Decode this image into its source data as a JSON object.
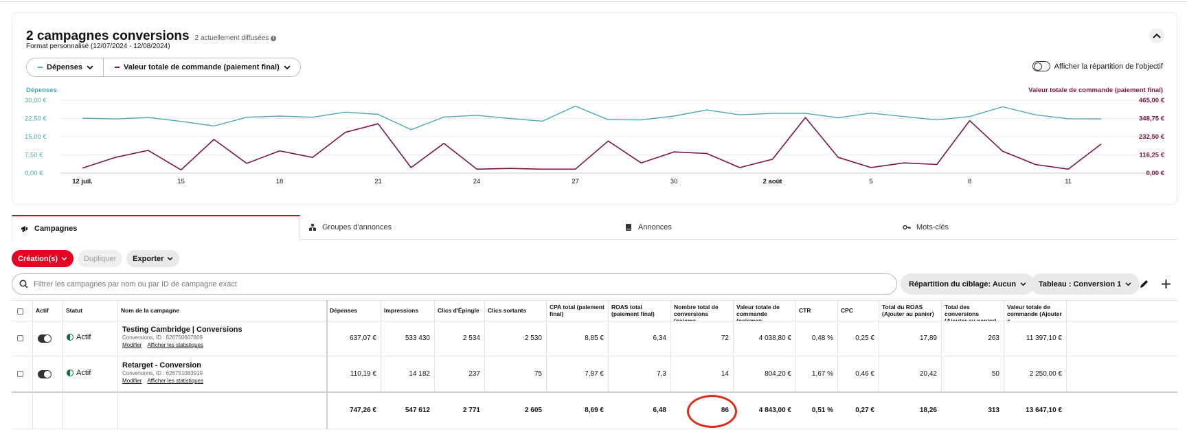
{
  "header": {
    "title": "2 campagnes conversions",
    "subtitle": "2 actuellement diffusées",
    "date_range": "Format personnalisé (12/07/2024 - 12/08/2024)",
    "metric_1": "Dépenses",
    "metric_2": "Valeur totale de commande (paiement final)",
    "toggle_label": "Afficher la répartition de l'objectif"
  },
  "colors": {
    "spend": "#4ea8b4",
    "order_value": "#7a1440",
    "accent": "#e60023"
  },
  "chart_data": {
    "type": "line",
    "left_axis_title": "Dépenses",
    "right_axis_title": "Valeur totale de commande (paiement final)",
    "left_ticks": [
      "30,00 €",
      "22,50 €",
      "15,00 €",
      "7,50 €",
      "0,00 €"
    ],
    "right_ticks": [
      "465,00 €",
      "348,75 €",
      "232,50 €",
      "116,25 €",
      "0,00 €"
    ],
    "left_ylim": [
      0,
      30
    ],
    "right_ylim": [
      0,
      465
    ],
    "x_tick_labels": [
      {
        "day": 0,
        "label": "12 juil.",
        "bold": true
      },
      {
        "day": 3,
        "label": "15",
        "bold": false
      },
      {
        "day": 6,
        "label": "18",
        "bold": false
      },
      {
        "day": 9,
        "label": "21",
        "bold": false
      },
      {
        "day": 12,
        "label": "24",
        "bold": false
      },
      {
        "day": 15,
        "label": "27",
        "bold": false
      },
      {
        "day": 18,
        "label": "30",
        "bold": false
      },
      {
        "day": 21,
        "label": "2 août",
        "bold": true
      },
      {
        "day": 24,
        "label": "5",
        "bold": false
      },
      {
        "day": 27,
        "label": "8",
        "bold": false
      },
      {
        "day": 30,
        "label": "11",
        "bold": false
      }
    ],
    "series": [
      {
        "name": "Dépenses",
        "axis": "left",
        "values": [
          22.6,
          22.3,
          22.9,
          21.3,
          19.4,
          23.0,
          23.5,
          23.0,
          25.1,
          24.2,
          17.9,
          23.1,
          23.8,
          22.5,
          21.4,
          27.6,
          22.0,
          21.9,
          23.5,
          26.0,
          24.0,
          24.6,
          24.6,
          22.8,
          24.7,
          23.3,
          21.9,
          23.3,
          27.3,
          24.0,
          22.4,
          22.3
        ]
      },
      {
        "name": "Valeur totale de commande (paiement final)",
        "axis": "right",
        "values": [
          32,
          100,
          145,
          20,
          215,
          62,
          142,
          100,
          260,
          315,
          35,
          190,
          25,
          30,
          25,
          25,
          205,
          65,
          135,
          125,
          35,
          88,
          355,
          100,
          35,
          65,
          55,
          335,
          140,
          55,
          25,
          185
        ]
      }
    ]
  },
  "tabs": [
    "Campagnes",
    "Groupes d'annonces",
    "Annonces",
    "Mots-clés"
  ],
  "actions": {
    "create": "Création(s)",
    "duplicate": "Dupliquer",
    "export": "Exporter"
  },
  "filter": {
    "placeholder": "Filtrer les campagnes par nom ou par ID de campagne exact",
    "targeting": "Répartition du ciblage: Aucun",
    "table_view": "Tableau : Conversion 1"
  },
  "table": {
    "headers": {
      "actif": "Actif",
      "statut": "Statut",
      "name": "Nom de la campagne",
      "metrics": [
        "Dépenses",
        "Impressions",
        "Clics d'Épingle",
        "Clics sortants",
        "CPA total (paiement final)",
        "ROAS total (paiement final)",
        "Nombre total de conversions (paieme...",
        "Valeur totale de commande (paiemen...",
        "CTR",
        "CPC",
        "Total du ROAS (Ajouter au panier)",
        "Total des conversions (Ajouter au panier)",
        "Valeur totale de commande (Ajouter a..."
      ]
    },
    "rows": [
      {
        "status": "Actif",
        "name": "Testing Cambridge | Conversions",
        "id": "Conversions, ID : 626750607809",
        "edit": "Modifier",
        "stats": "Afficher les statistiques",
        "values": [
          "637,07 €",
          "533 430",
          "2 534",
          "2 530",
          "8,85 €",
          "6,34",
          "72",
          "4 038,80 €",
          "0,48 %",
          "0,25 €",
          "17,89",
          "263",
          "11 397,10 €"
        ]
      },
      {
        "status": "Actif",
        "name": "Retarget - Conversion",
        "id": "Conversions, ID : 626751083919",
        "edit": "Modifier",
        "stats": "Afficher les statistiques",
        "values": [
          "110,19 €",
          "14 182",
          "237",
          "75",
          "7,87 €",
          "7,3",
          "14",
          "804,20 €",
          "1,67 %",
          "0,46 €",
          "20,42",
          "50",
          "2 250,00 €"
        ]
      }
    ],
    "totals": [
      "747,26 €",
      "547 612",
      "2 771",
      "2 605",
      "8,69 €",
      "6,48",
      "86",
      "4 843,00 €",
      "0,51 %",
      "0,27 €",
      "18,26",
      "313",
      "13 647,10 €"
    ]
  }
}
